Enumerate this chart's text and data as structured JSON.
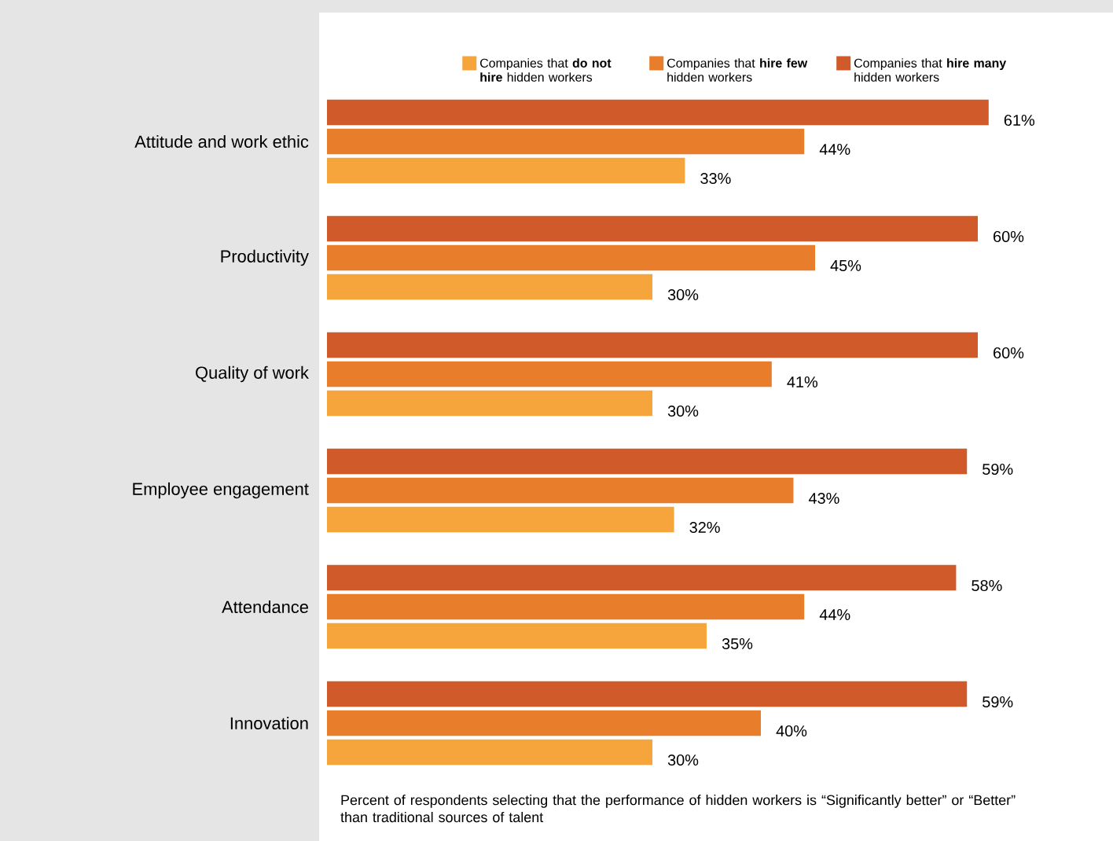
{
  "chart_data": {
    "type": "bar",
    "orientation": "horizontal",
    "legend": "top",
    "categories": [
      "Attitude and work ethic",
      "Productivity",
      "Quality of work",
      "Employee engagement",
      "Attendance",
      "Innovation"
    ],
    "series": [
      {
        "name": "Companies that **do not hire** hidden workers",
        "color": "#f5a53c",
        "values": [
          33,
          30,
          30,
          32,
          35,
          30
        ],
        "value_labels": [
          "33%",
          "30%",
          "30%",
          "32%",
          "35%",
          "30%"
        ]
      },
      {
        "name": "Companies that **hire few** hidden workers",
        "color": "#e87d2c",
        "values": [
          44,
          45,
          41,
          43,
          44,
          40
        ],
        "value_labels": [
          "44%",
          "45%",
          "41%",
          "43%",
          "44%",
          "40%"
        ]
      },
      {
        "name": "Companies that **hire many** hidden workers",
        "color": "#d15a2a",
        "values": [
          61,
          60,
          60,
          59,
          58,
          59
        ],
        "value_labels": [
          "61%",
          "60%",
          "60%",
          "59%",
          "58%",
          "59%"
        ]
      }
    ],
    "annotations": [
      "Percent of respondents selecting that the performance of hidden workers is “Significantly better” or “Better” than traditional sources of talent"
    ]
  }
}
